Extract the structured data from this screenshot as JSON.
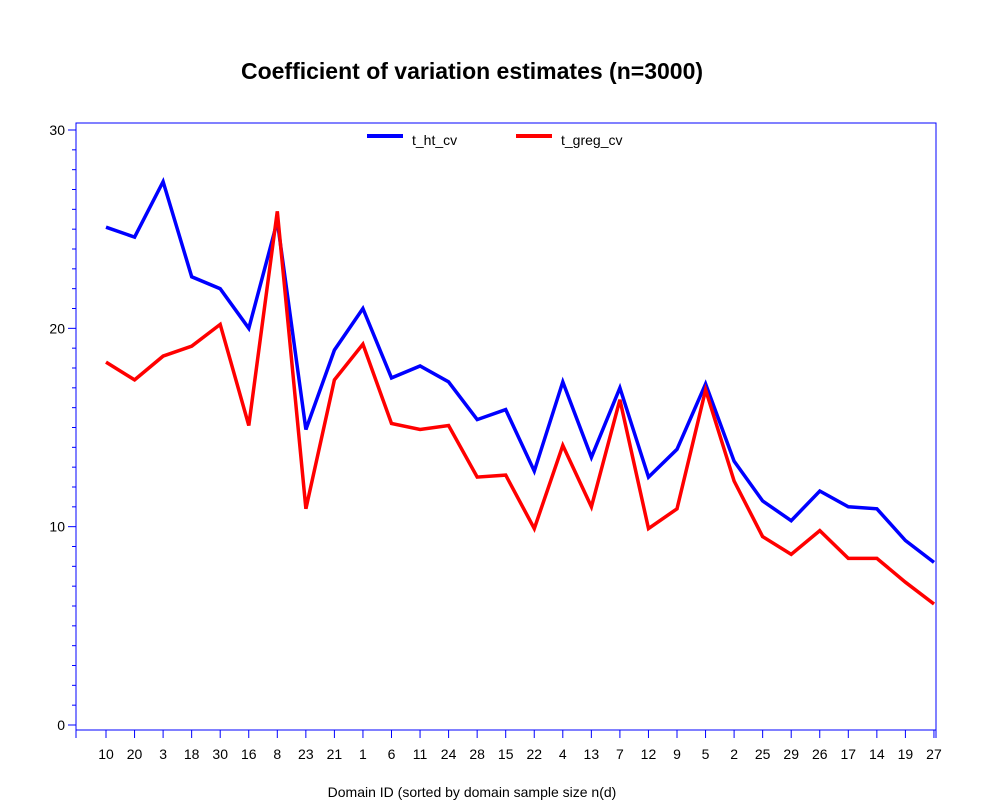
{
  "chart_data": {
    "type": "line",
    "title": "Coefficient of variation estimates (n=3000)",
    "xlabel": "Domain ID (sorted by domain sample size n(d)",
    "ylabel": "",
    "categories": [
      "10",
      "20",
      "3",
      "18",
      "30",
      "16",
      "8",
      "23",
      "21",
      "1",
      "6",
      "11",
      "24",
      "28",
      "15",
      "22",
      "4",
      "13",
      "7",
      "12",
      "9",
      "5",
      "2",
      "25",
      "29",
      "26",
      "17",
      "14",
      "19",
      "27"
    ],
    "ylim": [
      0,
      30
    ],
    "yticks": [
      "0",
      "10",
      "20",
      "30"
    ],
    "legend_position": "top-center",
    "grid": false,
    "series": [
      {
        "name": "t_ht_cv",
        "color": "#0000ff",
        "values": [
          25.1,
          24.6,
          27.4,
          22.6,
          22.0,
          20.0,
          25.4,
          14.9,
          18.9,
          21.0,
          17.5,
          18.1,
          17.3,
          15.4,
          15.9,
          12.8,
          17.3,
          13.5,
          17.0,
          12.5,
          13.9,
          17.2,
          13.3,
          11.3,
          10.3,
          11.8,
          11.0,
          10.9,
          9.3,
          8.2
        ]
      },
      {
        "name": "t_greg_cv",
        "color": "#ff0000",
        "values": [
          18.3,
          17.4,
          18.6,
          19.1,
          20.2,
          15.1,
          25.9,
          10.9,
          17.4,
          19.2,
          15.2,
          14.9,
          15.1,
          12.5,
          12.6,
          9.9,
          14.1,
          11.0,
          16.4,
          9.9,
          10.9,
          16.9,
          12.3,
          9.5,
          8.6,
          9.8,
          8.4,
          8.4,
          7.2,
          6.1
        ]
      }
    ]
  }
}
